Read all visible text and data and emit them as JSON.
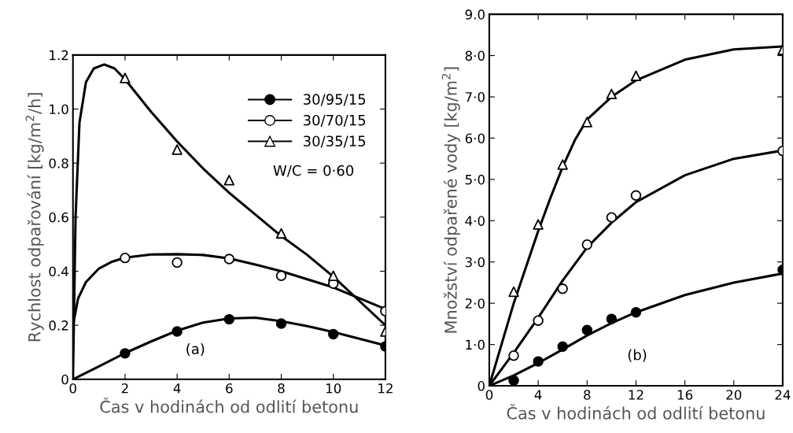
{
  "chart_data": [
    {
      "type": "line",
      "xlabel": "Čas v hodinách od odlití betonu",
      "ylabel": "Rychlost odpařování [kg/m$^{2}$/h]",
      "xlim": [
        0,
        12
      ],
      "ylim": [
        0,
        1.2
      ],
      "xticks": [
        0,
        2,
        4,
        6,
        8,
        10,
        12
      ],
      "yticks": [
        0,
        0.2,
        0.4,
        0.6,
        0.8,
        {
          "value": 1,
          "label": "1.0"
        },
        1.2
      ],
      "grid": false,
      "legend": "top right",
      "annotations": [
        "W/C = 0·60",
        "(a)"
      ],
      "series": [
        {
          "type": "scatter",
          "name": "30/95/15",
          "color": "#000000",
          "marker": "circle",
          "x": [
            2,
            4,
            6,
            8,
            10,
            12
          ],
          "values": [
            0.096,
            0.177,
            0.222,
            0.206,
            0.167,
            0.122
          ]
        },
        {
          "type": "scatter",
          "name": "30/70/15",
          "color": "#ffffff",
          "marker": "circle",
          "x": [
            2,
            4,
            6,
            8,
            10,
            12
          ],
          "values": [
            0.449,
            0.432,
            0.445,
            0.383,
            0.354,
            0.252
          ]
        },
        {
          "type": "scatter",
          "name": "30/35/15",
          "color": "#ffffff",
          "marker": "triangle",
          "x": [
            2,
            4,
            6,
            8,
            10,
            12
          ],
          "values": [
            1.115,
            0.85,
            0.737,
            0.54,
            0.383,
            0.177
          ]
        },
        {
          "color": "#000000",
          "line_style": "solid",
          "x": [
            0,
            1,
            2,
            3,
            4,
            5,
            6,
            7,
            8,
            9,
            10,
            11,
            12
          ],
          "values": [
            0,
            0.048,
            0.097,
            0.14,
            0.18,
            0.21,
            0.225,
            0.228,
            0.215,
            0.197,
            0.175,
            0.15,
            0.125
          ]
        },
        {
          "color": "#000000",
          "line_style": "solid",
          "x": [
            0,
            0.2,
            0.5,
            1,
            1.5,
            2,
            3,
            4,
            5,
            6,
            7,
            8,
            9,
            10,
            11,
            12
          ],
          "values": [
            0.2,
            0.3,
            0.36,
            0.41,
            0.435,
            0.45,
            0.462,
            0.463,
            0.46,
            0.447,
            0.425,
            0.4,
            0.37,
            0.34,
            0.3,
            0.26
          ]
        },
        {
          "color": "#000000",
          "line_style": "solid",
          "x": [
            0,
            0.1,
            0.25,
            0.5,
            0.8,
            1.2,
            1.6,
            2,
            3,
            4,
            5,
            6,
            7,
            8,
            9,
            10,
            11,
            12
          ],
          "values": [
            0,
            0.6,
            0.95,
            1.1,
            1.15,
            1.165,
            1.15,
            1.11,
            0.99,
            0.88,
            0.78,
            0.69,
            0.61,
            0.53,
            0.46,
            0.38,
            0.29,
            0.2
          ]
        }
      ]
    },
    {
      "type": "line",
      "xlabel": "Čas v hodinách od odlití betonu",
      "ylabel": "Množství odpařené vody [kg/m$^{2}$]",
      "xlim": [
        0,
        24
      ],
      "ylim": [
        0,
        9
      ],
      "xticks": [
        0,
        4,
        8,
        12,
        16,
        20,
        24
      ],
      "yticks": [
        {
          "value": 0,
          "label": "0"
        },
        {
          "value": 1,
          "label": "1·0"
        },
        {
          "value": 2,
          "label": "2·0"
        },
        {
          "value": 3,
          "label": "3·0"
        },
        {
          "value": 4,
          "label": "4·0"
        },
        {
          "value": 5,
          "label": "5·0"
        },
        {
          "value": 6,
          "label": "6·0"
        },
        {
          "value": 7,
          "label": "7·0"
        },
        {
          "value": 8,
          "label": "8·0"
        },
        {
          "value": 9,
          "label": "9.0"
        }
      ],
      "grid": false,
      "annotations": [
        "(b)"
      ],
      "series": [
        {
          "type": "scatter",
          "color": "#000000",
          "marker": "circle",
          "x": [
            2,
            4,
            6,
            8,
            10,
            12,
            24
          ],
          "values": [
            0.13,
            0.59,
            0.95,
            1.35,
            1.62,
            1.78,
            2.81
          ]
        },
        {
          "type": "scatter",
          "color": "#ffffff",
          "marker": "circle",
          "x": [
            2,
            4,
            6,
            8,
            10,
            12,
            24
          ],
          "values": [
            0.73,
            1.58,
            2.35,
            3.42,
            4.08,
            4.61,
            5.69
          ]
        },
        {
          "type": "scatter",
          "color": "#ffffff",
          "marker": "triangle",
          "x": [
            2,
            4,
            6,
            8,
            10,
            12,
            24
          ],
          "values": [
            2.28,
            3.91,
            5.36,
            6.39,
            7.07,
            7.51,
            8.14
          ]
        },
        {
          "color": "#000000",
          "line_style": "solid",
          "x": [
            0,
            2,
            4,
            6,
            8,
            10,
            12,
            16,
            20,
            24
          ],
          "values": [
            0,
            0.25,
            0.55,
            0.88,
            1.22,
            1.52,
            1.78,
            2.2,
            2.5,
            2.72
          ]
        },
        {
          "color": "#000000",
          "line_style": "solid",
          "x": [
            0,
            2,
            4,
            6,
            8,
            10,
            12,
            16,
            20,
            24
          ],
          "values": [
            0,
            0.8,
            1.65,
            2.55,
            3.35,
            3.95,
            4.45,
            5.1,
            5.5,
            5.7
          ]
        },
        {
          "color": "#000000",
          "line_style": "solid",
          "x": [
            0,
            2,
            4,
            5,
            6,
            7,
            8,
            10,
            12,
            16,
            20,
            24
          ],
          "values": [
            0,
            2.0,
            3.75,
            4.55,
            5.3,
            5.95,
            6.45,
            7.0,
            7.4,
            7.9,
            8.15,
            8.22
          ]
        }
      ]
    }
  ]
}
